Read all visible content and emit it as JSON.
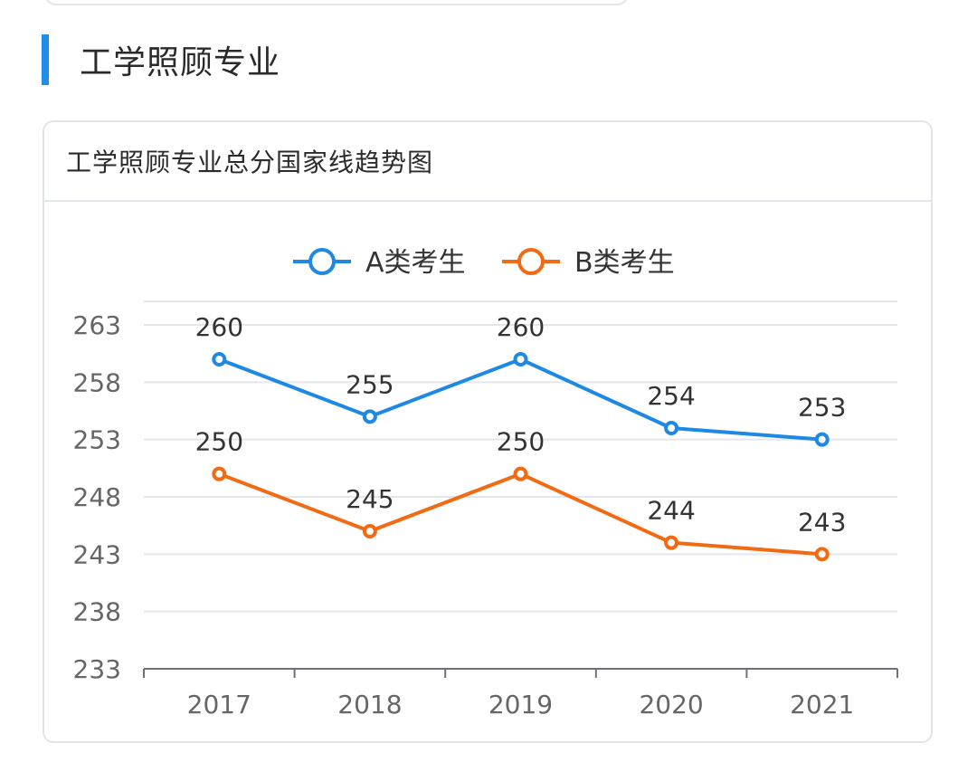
{
  "section": {
    "title": "工学照顾专业"
  },
  "card": {
    "title": "工学照顾专业总分国家线趋势图"
  },
  "chart_data": {
    "type": "line",
    "categories": [
      "2017",
      "2018",
      "2019",
      "2020",
      "2021"
    ],
    "series": [
      {
        "name": "A类考生",
        "values": [
          260,
          255,
          260,
          254,
          253
        ],
        "color": "#1e88e5"
      },
      {
        "name": "B类考生",
        "values": [
          250,
          245,
          250,
          244,
          243
        ],
        "color": "#f26a12"
      }
    ],
    "ylim": [
      233,
      263
    ],
    "yticks": [
      "263",
      "258",
      "253",
      "248",
      "243",
      "238",
      "233"
    ],
    "grid": true,
    "legend_position": "top-center",
    "title": "",
    "xlabel": "",
    "ylabel": ""
  }
}
